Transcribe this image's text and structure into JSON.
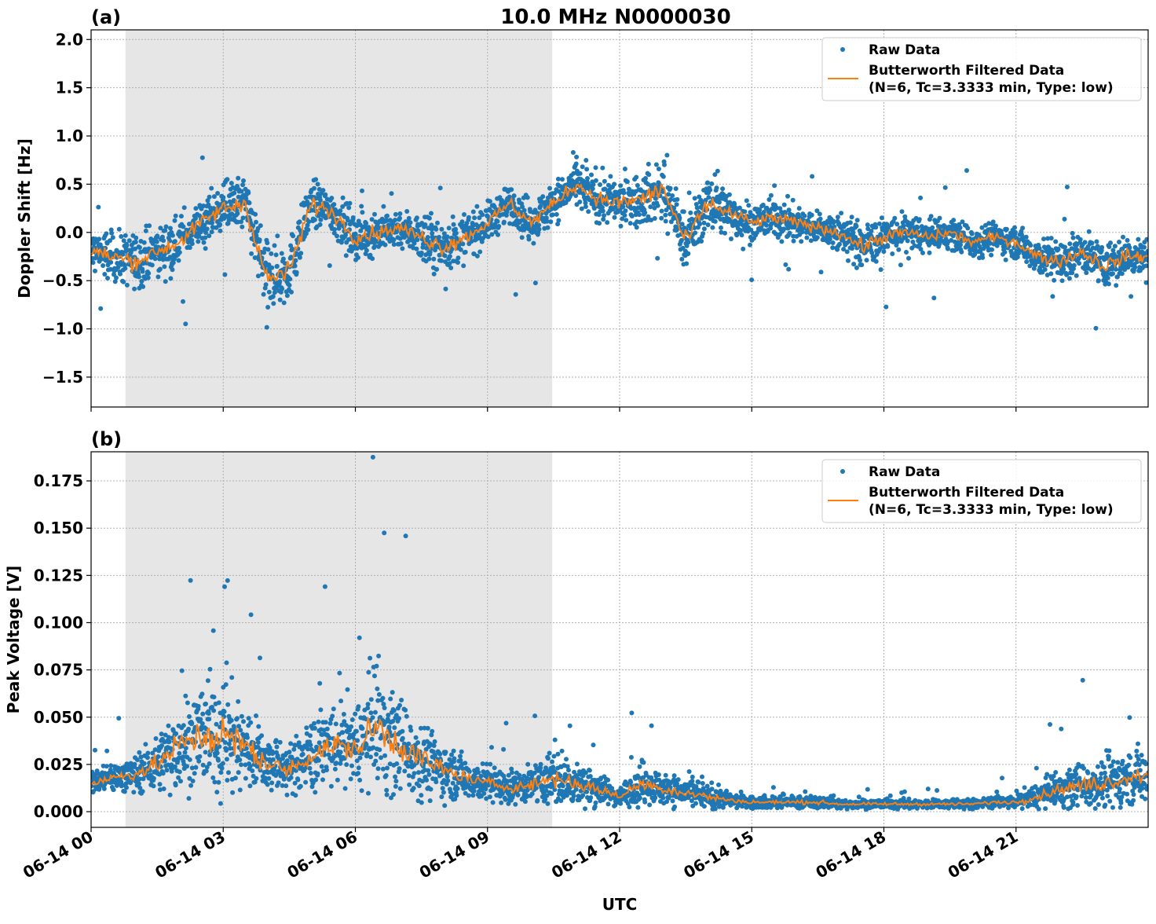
{
  "title": "10.0 MHz N0000030",
  "colors": {
    "raw": "#1f77b4",
    "filtered": "#ff7f0e",
    "shade": "#e6e6e6"
  },
  "x_axis": {
    "label": "UTC",
    "range_hours": [
      0,
      24
    ],
    "ticks": [
      0,
      3,
      6,
      9,
      12,
      15,
      18,
      21
    ],
    "tick_labels": [
      "06-14 00",
      "06-14 03",
      "06-14 06",
      "06-14 09",
      "06-14 12",
      "06-14 15",
      "06-14 18",
      "06-14 21"
    ]
  },
  "shaded_region_hours": [
    0.78,
    10.47
  ],
  "legend": {
    "raw_label": "Raw Data",
    "filtered_label_line1": "Butterworth Filtered Data",
    "filtered_label_line2": "(N=6, Tc=3.3333 min, Type: low)",
    "placement": "upper-right"
  },
  "chart_data": [
    {
      "panel": "(a)",
      "type": "scatter+line",
      "ylabel": "Doppler Shift [Hz]",
      "ylim": [
        -1.81,
        2.1
      ],
      "yticks": [
        -1.5,
        -1.0,
        -0.5,
        0.0,
        0.5,
        1.0,
        1.5,
        2.0
      ],
      "ytick_labels": [
        "−1.5",
        "−1.0",
        "−0.5",
        "0.0",
        "0.5",
        "1.0",
        "1.5",
        "2.0"
      ],
      "grid": true,
      "x_hours": [
        0,
        0.5,
        1,
        1.5,
        2,
        2.5,
        3,
        3.5,
        4,
        4.5,
        5,
        5.5,
        6,
        6.5,
        7,
        7.5,
        8,
        8.5,
        9,
        9.5,
        10,
        10.5,
        11,
        11.5,
        12,
        12.5,
        13,
        13.5,
        14,
        14.5,
        15,
        15.5,
        16,
        16.5,
        17,
        17.5,
        18,
        18.5,
        19,
        19.5,
        20,
        20.5,
        21,
        21.5,
        22,
        22.5,
        23,
        23.5,
        24
      ],
      "series": [
        {
          "name": "Butterworth Filtered Data",
          "values": [
            -0.2,
            -0.25,
            -0.3,
            -0.2,
            -0.1,
            0.1,
            0.25,
            0.3,
            -0.5,
            -0.4,
            0.3,
            0.2,
            -0.05,
            0.0,
            0.05,
            -0.05,
            -0.15,
            -0.05,
            0.1,
            0.3,
            0.1,
            0.3,
            0.5,
            0.35,
            0.3,
            0.35,
            0.45,
            -0.1,
            0.3,
            0.2,
            0.1,
            0.15,
            0.1,
            0.05,
            0.0,
            -0.15,
            -0.05,
            0.0,
            -0.05,
            0.0,
            -0.1,
            -0.05,
            -0.1,
            -0.25,
            -0.3,
            -0.2,
            -0.35,
            -0.25,
            -0.25
          ]
        },
        {
          "name": "Raw Data",
          "spread": [
            0.3,
            0.3,
            0.35,
            0.3,
            0.3,
            0.3,
            0.35,
            0.35,
            0.45,
            0.4,
            0.3,
            0.3,
            0.3,
            0.3,
            0.25,
            0.3,
            0.35,
            0.3,
            0.25,
            0.25,
            0.3,
            0.25,
            0.3,
            0.3,
            0.3,
            0.35,
            0.4,
            0.35,
            0.35,
            0.3,
            0.25,
            0.25,
            0.25,
            0.2,
            0.25,
            0.3,
            0.25,
            0.25,
            0.2,
            0.2,
            0.2,
            0.2,
            0.2,
            0.25,
            0.25,
            0.25,
            0.3,
            0.25,
            0.25
          ]
        }
      ]
    },
    {
      "panel": "(b)",
      "type": "scatter+line",
      "ylabel": "Peak Voltage [V]",
      "ylim": [
        -0.0083,
        0.1904
      ],
      "yticks": [
        0.0,
        0.025,
        0.05,
        0.075,
        0.1,
        0.125,
        0.15,
        0.175
      ],
      "ytick_labels": [
        "0.000",
        "0.025",
        "0.050",
        "0.075",
        "0.100",
        "0.125",
        "0.150",
        "0.175"
      ],
      "grid": true,
      "x_hours": [
        0,
        0.5,
        1,
        1.5,
        2,
        2.5,
        3,
        3.5,
        4,
        4.5,
        5,
        5.5,
        6,
        6.5,
        7,
        7.5,
        8,
        8.5,
        9,
        9.5,
        10,
        10.5,
        11,
        11.5,
        12,
        12.5,
        13,
        13.5,
        14,
        14.5,
        15,
        15.5,
        16,
        16.5,
        17,
        17.5,
        18,
        18.5,
        19,
        19.5,
        20,
        20.5,
        21,
        21.5,
        22,
        22.5,
        23,
        23.5,
        24
      ],
      "series": [
        {
          "name": "Butterworth Filtered Data",
          "values": [
            0.015,
            0.018,
            0.02,
            0.025,
            0.035,
            0.04,
            0.04,
            0.035,
            0.025,
            0.022,
            0.03,
            0.035,
            0.033,
            0.045,
            0.035,
            0.028,
            0.022,
            0.018,
            0.015,
            0.013,
            0.014,
            0.018,
            0.015,
            0.012,
            0.008,
            0.015,
            0.012,
            0.01,
            0.008,
            0.006,
            0.005,
            0.005,
            0.005,
            0.005,
            0.004,
            0.004,
            0.004,
            0.004,
            0.004,
            0.004,
            0.004,
            0.005,
            0.005,
            0.008,
            0.012,
            0.014,
            0.015,
            0.018,
            0.02
          ]
        },
        {
          "name": "Raw Data",
          "spread": [
            0.01,
            0.01,
            0.012,
            0.018,
            0.03,
            0.035,
            0.04,
            0.03,
            0.018,
            0.015,
            0.025,
            0.028,
            0.025,
            0.045,
            0.03,
            0.025,
            0.018,
            0.014,
            0.012,
            0.01,
            0.012,
            0.02,
            0.015,
            0.01,
            0.006,
            0.015,
            0.01,
            0.01,
            0.008,
            0.005,
            0.004,
            0.004,
            0.004,
            0.004,
            0.003,
            0.003,
            0.003,
            0.003,
            0.003,
            0.003,
            0.003,
            0.004,
            0.004,
            0.008,
            0.012,
            0.014,
            0.016,
            0.018,
            0.02
          ]
        }
      ]
    }
  ]
}
